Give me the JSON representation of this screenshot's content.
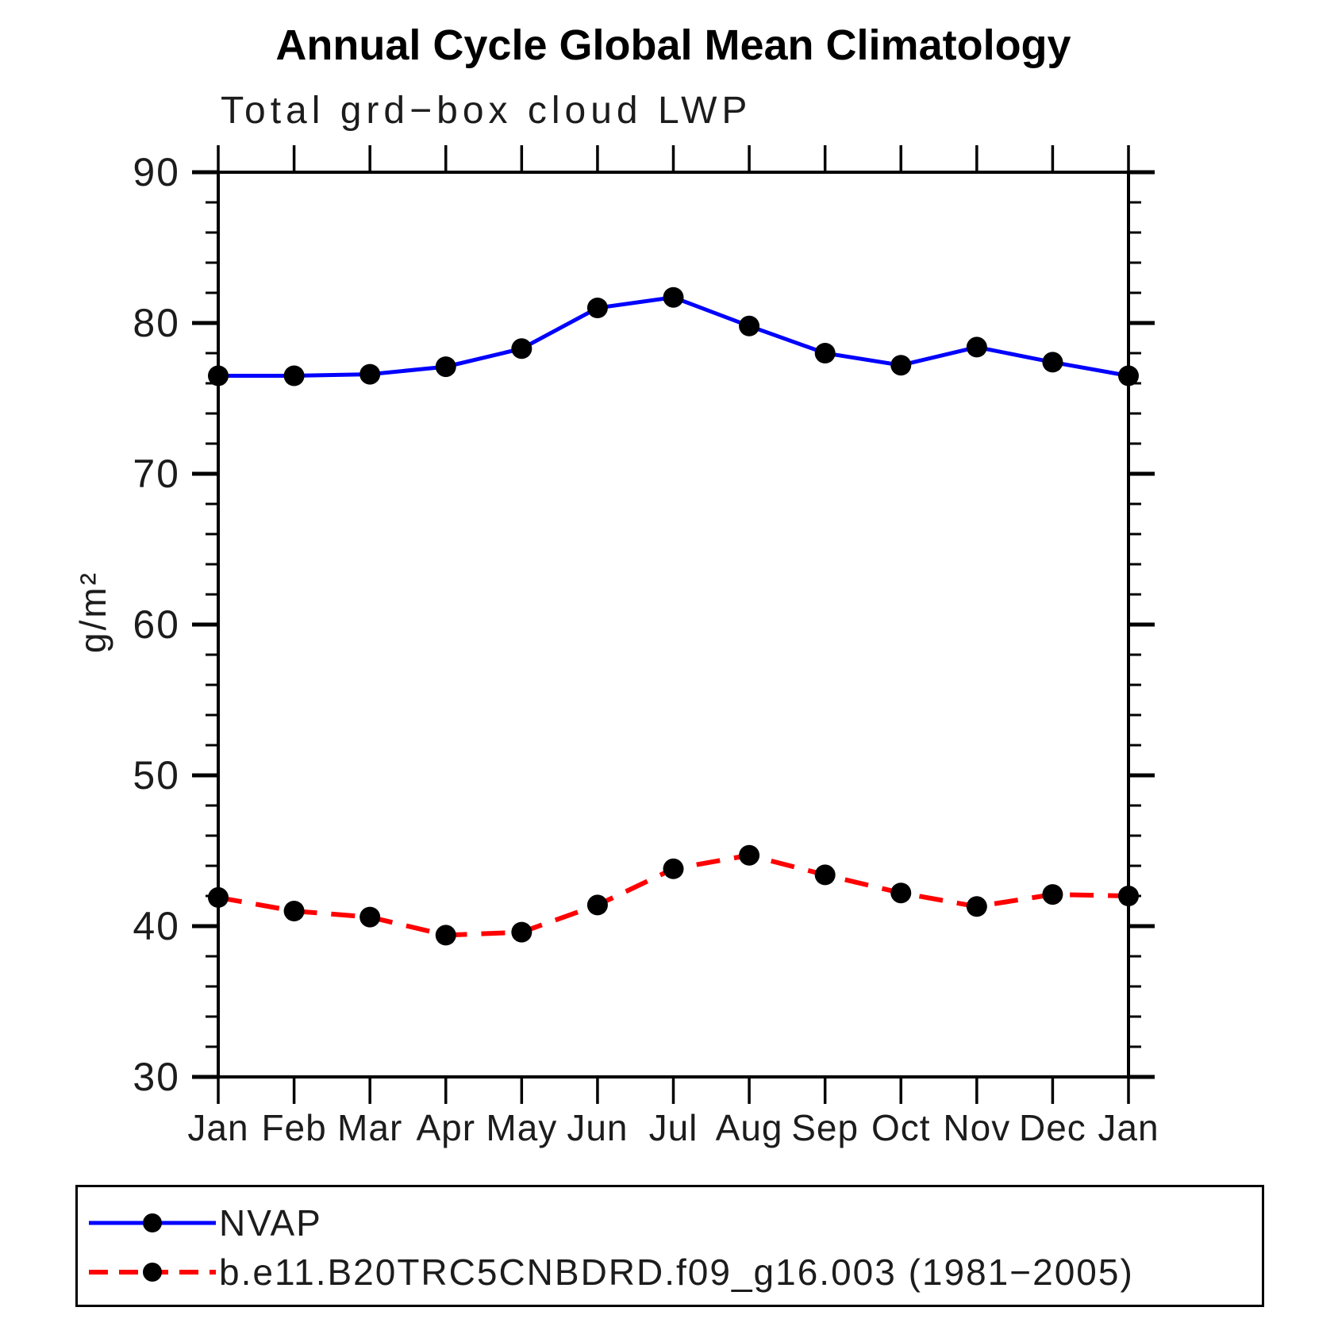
{
  "page": {
    "background": "#ffffff"
  },
  "chart_data": {
    "type": "line",
    "title": "Annual Cycle Global Mean Climatology",
    "subtitle": "Total grd−box cloud LWP",
    "xlabel": "",
    "ylabel": "g/m²",
    "x_categories": [
      "Jan",
      "Feb",
      "Mar",
      "Apr",
      "May",
      "Jun",
      "Jul",
      "Aug",
      "Sep",
      "Oct",
      "Nov",
      "Dec",
      "Jan"
    ],
    "ylim": [
      30,
      90
    ],
    "ytick_major": [
      30,
      40,
      50,
      60,
      70,
      80,
      90
    ],
    "ytick_minor_step": 2,
    "grid": false,
    "frame": "box-with-outward-ticks",
    "legend_position": "bottom-box",
    "axis_color": "#000000",
    "series": [
      {
        "name": "NVAP",
        "color": "#0000ff",
        "style": "solid",
        "marker": "circle",
        "marker_color": "#000000",
        "values": [
          76.5,
          76.5,
          76.6,
          77.1,
          78.3,
          81.0,
          81.7,
          79.8,
          78.0,
          77.2,
          78.4,
          77.4,
          76.5
        ]
      },
      {
        "name": "b.e11.B20TRC5CNBDRD.f09_g16.003 (1981−2005)",
        "color": "#ff0000",
        "style": "dashed",
        "marker": "circle",
        "marker_color": "#000000",
        "values": [
          41.9,
          41.0,
          40.6,
          39.4,
          39.6,
          41.4,
          43.8,
          44.7,
          43.4,
          42.2,
          41.3,
          42.1,
          42.0
        ]
      }
    ]
  }
}
